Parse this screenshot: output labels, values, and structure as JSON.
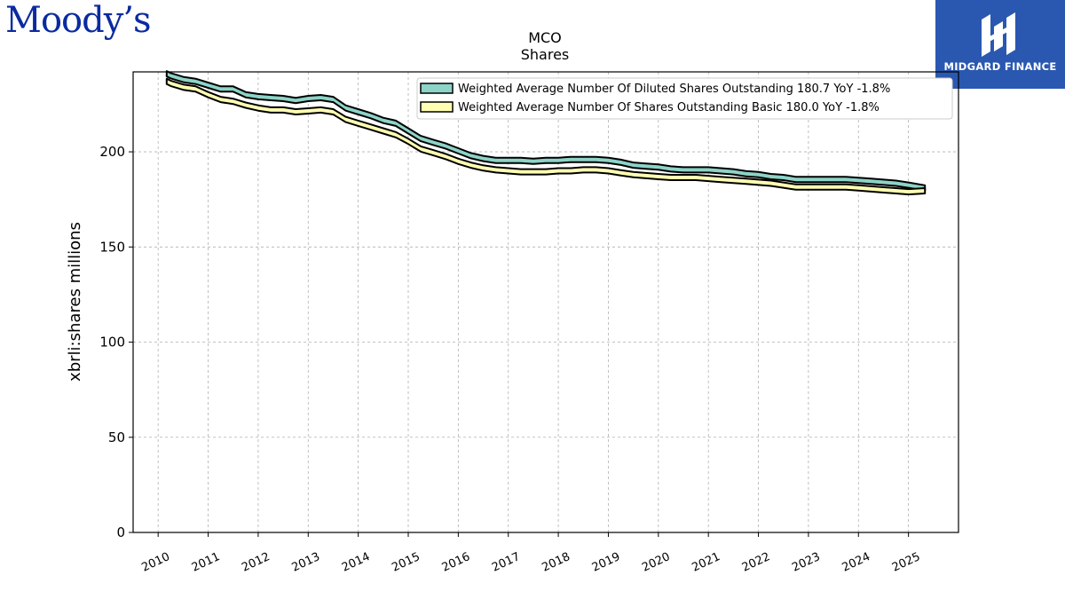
{
  "brand": {
    "left_logo": "Moody’s",
    "right_logo": "MIDGARD FINANCE",
    "logo_bg": "#2a58b0",
    "logo_icon": "midgard-monogram-icon"
  },
  "chart_data": {
    "type": "area",
    "title": "MCO",
    "subtitle": "Shares",
    "xlabel": "",
    "ylabel": "xbrli:shares millions",
    "xlim": [
      2009.5,
      2026.0
    ],
    "ylim": [
      0,
      242
    ],
    "yticks": [
      0,
      50,
      100,
      150,
      200
    ],
    "xticks": [
      "2010",
      "2011",
      "2012",
      "2013",
      "2014",
      "2015",
      "2016",
      "2017",
      "2018",
      "2019",
      "2020",
      "2021",
      "2022",
      "2023",
      "2024",
      "2025"
    ],
    "grid": true,
    "legend_position": "top-right",
    "series": [
      {
        "name": "Weighted Average Number Of Diluted Shares Outstanding",
        "legend_label": "Weighted Average Number Of Diluted Shares Outstanding  180.7 YoY -1.8%",
        "color": "#8dd3c7",
        "points": [
          [
            2010.17,
            241.0
          ],
          [
            2010.25,
            240.0
          ],
          [
            2010.5,
            238.0
          ],
          [
            2010.75,
            237.0
          ],
          [
            2011.0,
            235.0
          ],
          [
            2011.25,
            233.0
          ],
          [
            2011.5,
            233.0
          ],
          [
            2011.75,
            230.0
          ],
          [
            2012.0,
            229.0
          ],
          [
            2012.25,
            228.5
          ],
          [
            2012.5,
            228.0
          ],
          [
            2012.75,
            227.0
          ],
          [
            2013.0,
            228.0
          ],
          [
            2013.25,
            228.5
          ],
          [
            2013.5,
            227.5
          ],
          [
            2013.75,
            223.0
          ],
          [
            2014.0,
            221.0
          ],
          [
            2014.25,
            219.0
          ],
          [
            2014.5,
            216.5
          ],
          [
            2014.75,
            215.0
          ],
          [
            2015.0,
            211.0
          ],
          [
            2015.25,
            207.0
          ],
          [
            2015.5,
            205.0
          ],
          [
            2015.75,
            203.0
          ],
          [
            2016.0,
            200.5
          ],
          [
            2016.25,
            198.0
          ],
          [
            2016.5,
            196.5
          ],
          [
            2016.75,
            195.5
          ],
          [
            2017.0,
            195.5
          ],
          [
            2017.25,
            195.5
          ],
          [
            2017.5,
            195.0
          ],
          [
            2017.75,
            195.5
          ],
          [
            2018.0,
            195.5
          ],
          [
            2018.25,
            196.0
          ],
          [
            2018.5,
            196.0
          ],
          [
            2018.75,
            196.0
          ],
          [
            2019.0,
            195.5
          ],
          [
            2019.25,
            194.5
          ],
          [
            2019.5,
            193.0
          ],
          [
            2019.75,
            192.5
          ],
          [
            2020.0,
            192.0
          ],
          [
            2020.25,
            191.0
          ],
          [
            2020.5,
            190.5
          ],
          [
            2020.75,
            190.5
          ],
          [
            2021.0,
            190.5
          ],
          [
            2021.25,
            190.0
          ],
          [
            2021.5,
            189.5
          ],
          [
            2021.75,
            188.5
          ],
          [
            2022.0,
            188.0
          ],
          [
            2022.25,
            187.0
          ],
          [
            2022.5,
            186.5
          ],
          [
            2022.75,
            185.5
          ],
          [
            2023.0,
            185.5
          ],
          [
            2023.25,
            185.5
          ],
          [
            2023.5,
            185.5
          ],
          [
            2023.75,
            185.5
          ],
          [
            2024.0,
            185.0
          ],
          [
            2024.25,
            184.5
          ],
          [
            2024.5,
            184.0
          ],
          [
            2024.75,
            183.5
          ],
          [
            2025.0,
            182.5
          ],
          [
            2025.33,
            181.0
          ]
        ]
      },
      {
        "name": "Weighted Average Number Of Shares Outstanding Basic",
        "legend_label": "Weighted Average Number Of Shares Outstanding Basic  180.0 YoY -1.8%",
        "color": "#ffffb3",
        "points": [
          [
            2010.17,
            237.0
          ],
          [
            2010.25,
            236.0
          ],
          [
            2010.5,
            234.0
          ],
          [
            2010.75,
            233.0
          ],
          [
            2011.0,
            230.0
          ],
          [
            2011.25,
            227.5
          ],
          [
            2011.5,
            226.5
          ],
          [
            2011.75,
            224.5
          ],
          [
            2012.0,
            223.0
          ],
          [
            2012.25,
            222.0
          ],
          [
            2012.5,
            222.0
          ],
          [
            2012.75,
            221.0
          ],
          [
            2013.0,
            221.5
          ],
          [
            2013.25,
            222.0
          ],
          [
            2013.5,
            221.0
          ],
          [
            2013.75,
            217.0
          ],
          [
            2014.0,
            215.0
          ],
          [
            2014.25,
            213.0
          ],
          [
            2014.5,
            211.0
          ],
          [
            2014.75,
            209.0
          ],
          [
            2015.0,
            205.5
          ],
          [
            2015.25,
            201.5
          ],
          [
            2015.5,
            199.5
          ],
          [
            2015.75,
            197.5
          ],
          [
            2016.0,
            195.0
          ],
          [
            2016.25,
            193.0
          ],
          [
            2016.5,
            191.5
          ],
          [
            2016.75,
            190.5
          ],
          [
            2017.0,
            190.0
          ],
          [
            2017.25,
            189.5
          ],
          [
            2017.5,
            189.5
          ],
          [
            2017.75,
            189.5
          ],
          [
            2018.0,
            190.0
          ],
          [
            2018.25,
            190.0
          ],
          [
            2018.5,
            190.5
          ],
          [
            2018.75,
            190.5
          ],
          [
            2019.0,
            190.0
          ],
          [
            2019.25,
            189.0
          ],
          [
            2019.5,
            188.0
          ],
          [
            2019.75,
            187.5
          ],
          [
            2020.0,
            187.0
          ],
          [
            2020.25,
            186.5
          ],
          [
            2020.5,
            186.5
          ],
          [
            2020.75,
            186.5
          ],
          [
            2021.0,
            186.0
          ],
          [
            2021.25,
            185.5
          ],
          [
            2021.5,
            185.0
          ],
          [
            2021.75,
            184.5
          ],
          [
            2022.0,
            184.0
          ],
          [
            2022.25,
            183.5
          ],
          [
            2022.5,
            182.5
          ],
          [
            2022.75,
            181.5
          ],
          [
            2023.0,
            181.5
          ],
          [
            2023.25,
            181.5
          ],
          [
            2023.5,
            181.5
          ],
          [
            2023.75,
            181.5
          ],
          [
            2024.0,
            181.0
          ],
          [
            2024.25,
            180.5
          ],
          [
            2024.5,
            180.0
          ],
          [
            2024.75,
            179.5
          ],
          [
            2025.0,
            179.0
          ],
          [
            2025.33,
            179.5
          ]
        ]
      }
    ]
  }
}
